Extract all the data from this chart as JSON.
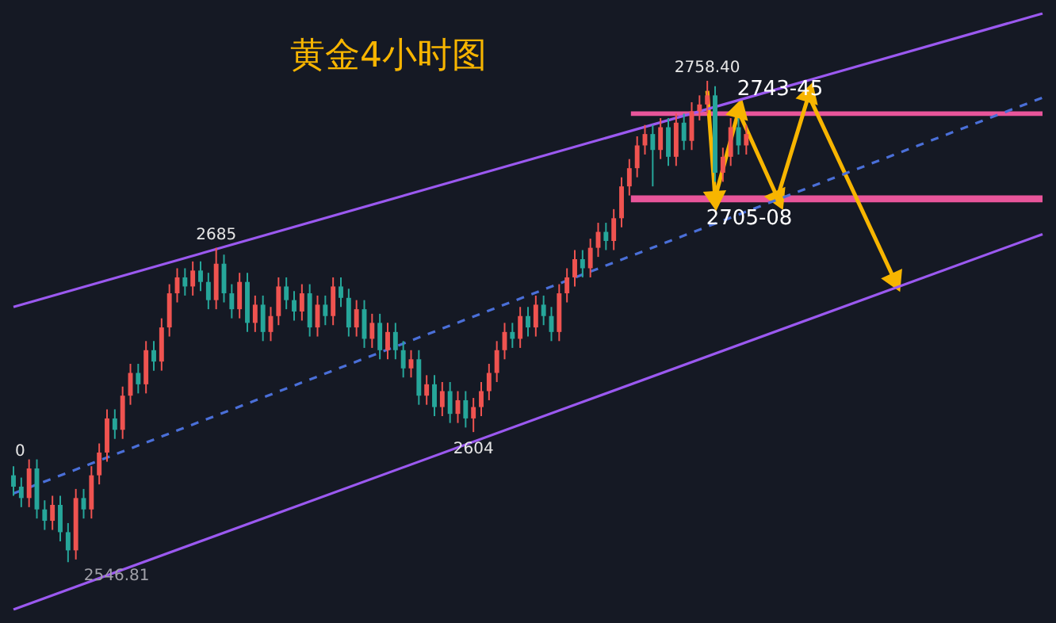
{
  "chart_data": {
    "type": "candlestick",
    "title": "黄金4小时图",
    "categories": [
      null,
      null,
      null,
      null,
      null,
      null,
      null,
      null,
      null,
      null,
      null,
      null,
      null,
      null,
      null,
      null,
      null,
      null,
      null,
      null,
      null,
      null,
      null,
      null,
      null,
      null,
      null,
      null,
      null,
      null,
      null,
      null,
      null,
      null,
      null,
      null,
      null,
      null,
      null,
      null,
      null,
      null,
      null,
      null,
      null,
      null,
      null,
      null,
      null,
      null,
      null,
      null,
      null,
      null,
      null,
      null,
      null,
      null,
      null,
      null,
      null,
      null,
      null,
      null,
      null,
      null,
      null,
      null,
      null,
      null,
      null,
      null,
      null,
      null,
      null,
      null,
      null,
      null,
      null,
      null,
      null,
      null,
      null,
      null,
      null,
      null,
      null,
      null,
      null,
      null,
      null,
      null,
      null,
      null,
      null,
      null,
      null,
      null,
      null,
      null,
      null,
      null,
      null,
      null,
      null,
      null,
      null,
      null,
      null,
      null,
      null,
      null,
      null,
      null,
      null,
      null,
      null,
      null,
      null,
      null,
      null,
      null,
      null,
      null,
      null,
      null,
      null,
      null,
      null,
      null,
      null,
      null,
      null
    ],
    "ohlc": [
      [
        2585,
        2589,
        2576,
        2580
      ],
      [
        2580,
        2584,
        2571,
        2575
      ],
      [
        2575,
        2592,
        2571,
        2588
      ],
      [
        2588,
        2592,
        2566,
        2570
      ],
      [
        2570,
        2574,
        2561,
        2565
      ],
      [
        2565,
        2576,
        2561,
        2572
      ],
      [
        2572,
        2576,
        2556,
        2560
      ],
      [
        2560,
        2564,
        2546.81,
        2552
      ],
      [
        2552,
        2579,
        2548,
        2575
      ],
      [
        2575,
        2579,
        2566,
        2570
      ],
      [
        2570,
        2589,
        2566,
        2585
      ],
      [
        2585,
        2599,
        2581,
        2595
      ],
      [
        2595,
        2614,
        2591,
        2610
      ],
      [
        2610,
        2614,
        2601,
        2605
      ],
      [
        2605,
        2624,
        2601,
        2620
      ],
      [
        2620,
        2634,
        2616,
        2630
      ],
      [
        2630,
        2634,
        2621,
        2625
      ],
      [
        2625,
        2644,
        2621,
        2640
      ],
      [
        2640,
        2644,
        2631,
        2635
      ],
      [
        2635,
        2654,
        2631,
        2650
      ],
      [
        2650,
        2669,
        2646,
        2665
      ],
      [
        2665,
        2676,
        2661,
        2672
      ],
      [
        2672,
        2676,
        2664,
        2668
      ],
      [
        2668,
        2679,
        2664,
        2675
      ],
      [
        2675,
        2679,
        2666,
        2670
      ],
      [
        2670,
        2674,
        2658,
        2662
      ],
      [
        2662,
        2685,
        2658,
        2678
      ],
      [
        2678,
        2682,
        2661,
        2665
      ],
      [
        2665,
        2669,
        2654,
        2658
      ],
      [
        2658,
        2674,
        2654,
        2670
      ],
      [
        2670,
        2674,
        2648,
        2652
      ],
      [
        2652,
        2664,
        2648,
        2660
      ],
      [
        2660,
        2664,
        2644,
        2648
      ],
      [
        2648,
        2659,
        2644,
        2655
      ],
      [
        2655,
        2672,
        2651,
        2668
      ],
      [
        2668,
        2672,
        2658,
        2662
      ],
      [
        2662,
        2666,
        2653,
        2657
      ],
      [
        2657,
        2669,
        2653,
        2665
      ],
      [
        2665,
        2669,
        2646,
        2650
      ],
      [
        2650,
        2664,
        2646,
        2660
      ],
      [
        2660,
        2664,
        2651,
        2655
      ],
      [
        2655,
        2672,
        2651,
        2668
      ],
      [
        2668,
        2672,
        2659,
        2663
      ],
      [
        2663,
        2667,
        2646,
        2650
      ],
      [
        2650,
        2662,
        2646,
        2658
      ],
      [
        2658,
        2662,
        2641,
        2645
      ],
      [
        2645,
        2656,
        2641,
        2652
      ],
      [
        2652,
        2656,
        2636,
        2640
      ],
      [
        2640,
        2652,
        2636,
        2648
      ],
      [
        2648,
        2652,
        2636,
        2640
      ],
      [
        2640,
        2644,
        2628,
        2632
      ],
      [
        2632,
        2640,
        2628,
        2636
      ],
      [
        2636,
        2640,
        2616,
        2620
      ],
      [
        2620,
        2629,
        2616,
        2625
      ],
      [
        2625,
        2629,
        2611,
        2615
      ],
      [
        2615,
        2626,
        2611,
        2622
      ],
      [
        2622,
        2626,
        2608,
        2612
      ],
      [
        2612,
        2622,
        2608,
        2618
      ],
      [
        2618,
        2622,
        2606,
        2610
      ],
      [
        2610,
        2619,
        2604,
        2615
      ],
      [
        2615,
        2626,
        2611,
        2622
      ],
      [
        2622,
        2634,
        2618,
        2630
      ],
      [
        2630,
        2644,
        2626,
        2640
      ],
      [
        2640,
        2652,
        2636,
        2648
      ],
      [
        2648,
        2652,
        2641,
        2645
      ],
      [
        2645,
        2659,
        2641,
        2655
      ],
      [
        2655,
        2659,
        2646,
        2650
      ],
      [
        2650,
        2664,
        2646,
        2660
      ],
      [
        2660,
        2664,
        2651,
        2655
      ],
      [
        2655,
        2659,
        2644,
        2648
      ],
      [
        2648,
        2669,
        2644,
        2665
      ],
      [
        2665,
        2676,
        2661,
        2672
      ],
      [
        2672,
        2684,
        2668,
        2680
      ],
      [
        2680,
        2684,
        2672,
        2676
      ],
      [
        2676,
        2689,
        2672,
        2685
      ],
      [
        2685,
        2696,
        2681,
        2692
      ],
      [
        2692,
        2696,
        2684,
        2688
      ],
      [
        2688,
        2702,
        2684,
        2698
      ],
      [
        2698,
        2716,
        2694,
        2712
      ],
      [
        2712,
        2724,
        2708,
        2720
      ],
      [
        2720,
        2734,
        2716,
        2730
      ],
      [
        2730,
        2739,
        2726,
        2735
      ],
      [
        2735,
        2739,
        2712,
        2728
      ],
      [
        2728,
        2742,
        2724,
        2738
      ],
      [
        2738,
        2742,
        2721,
        2725
      ],
      [
        2725,
        2744,
        2721,
        2740
      ],
      [
        2740,
        2744,
        2728,
        2732
      ],
      [
        2732,
        2749,
        2728,
        2745
      ],
      [
        2745,
        2752,
        2741,
        2748
      ],
      [
        2748,
        2758.4,
        2744,
        2752
      ],
      [
        2752,
        2756,
        2714,
        2718
      ],
      [
        2718,
        2729,
        2714,
        2725
      ],
      [
        2725,
        2742,
        2721,
        2738
      ],
      [
        2738,
        2742,
        2726,
        2730
      ],
      [
        2730,
        2739,
        2726,
        2735
      ],
      null,
      null,
      null,
      null,
      null,
      null,
      null,
      null,
      null,
      null,
      null,
      null,
      null,
      null,
      null,
      null,
      null,
      null,
      null,
      null,
      null,
      null,
      null,
      null,
      null,
      null,
      null,
      null,
      null,
      null,
      null,
      null,
      null,
      null,
      null,
      null,
      null,
      null
    ],
    "colors": [
      "#26a69a",
      "#26a69a",
      "#ef5350",
      "#26a69a",
      "#26a69a",
      "#ef5350",
      "#26a69a",
      "#26a69a",
      "#ef5350",
      "#26a69a",
      "#ef5350",
      "#ef5350",
      "#ef5350",
      "#26a69a",
      "#ef5350",
      "#ef5350",
      "#26a69a",
      "#ef5350",
      "#26a69a",
      "#ef5350",
      "#ef5350",
      "#ef5350",
      "#26a69a",
      "#ef5350",
      "#26a69a",
      "#26a69a",
      "#ef5350",
      "#26a69a",
      "#26a69a",
      "#ef5350",
      "#26a69a",
      "#ef5350",
      "#26a69a",
      "#ef5350",
      "#ef5350",
      "#26a69a",
      "#26a69a",
      "#ef5350",
      "#26a69a",
      "#ef5350",
      "#26a69a",
      "#ef5350",
      "#26a69a",
      "#26a69a",
      "#ef5350",
      "#26a69a",
      "#ef5350",
      "#26a69a",
      "#ef5350",
      "#26a69a",
      "#26a69a",
      "#ef5350",
      "#26a69a",
      "#ef5350",
      "#26a69a",
      "#ef5350",
      "#26a69a",
      "#ef5350",
      "#26a69a",
      "#ef5350",
      "#ef5350",
      "#ef5350",
      "#ef5350",
      "#ef5350",
      "#26a69a",
      "#ef5350",
      "#26a69a",
      "#ef5350",
      "#26a69a",
      "#26a69a",
      "#ef5350",
      "#ef5350",
      "#ef5350",
      "#26a69a",
      "#ef5350",
      "#ef5350",
      "#26a69a",
      "#ef5350",
      "#ef5350",
      "#ef5350",
      "#ef5350",
      "#ef5350",
      "#26a69a",
      "#ef5350",
      "#26a69a",
      "#ef5350",
      "#26a69a",
      "#ef5350",
      "#ef5350",
      "#ef5350",
      "#26a69a",
      "#ef5350",
      "#ef5350",
      "#26a69a",
      "#ef5350",
      null,
      null,
      null,
      null,
      null,
      null,
      null,
      null,
      null,
      null,
      null,
      null,
      null,
      null,
      null,
      null,
      null,
      null,
      null,
      null,
      null,
      null,
      null,
      null,
      null,
      null,
      null,
      null,
      null,
      null,
      null,
      null,
      null,
      null,
      null,
      null,
      null,
      null
    ],
    "series": [
      {
        "type": "line",
        "color": "#9b59f0",
        "values": [
          2659,
          null,
          null,
          null,
          null,
          null,
          null,
          null,
          null,
          null,
          null,
          null,
          null,
          null,
          null,
          null,
          null,
          null,
          null,
          null,
          null,
          null,
          null,
          null,
          null,
          null,
          null,
          null,
          null,
          null,
          null,
          null,
          null,
          null,
          null,
          null,
          null,
          null,
          null,
          null,
          null,
          null,
          null,
          null,
          null,
          null,
          null,
          null,
          null,
          null,
          null,
          null,
          null,
          null,
          null,
          null,
          null,
          null,
          null,
          null,
          null,
          null,
          null,
          null,
          null,
          null,
          null,
          null,
          null,
          null,
          null,
          null,
          null,
          null,
          null,
          null,
          null,
          null,
          null,
          null,
          null,
          null,
          null,
          null,
          null,
          null,
          null,
          null,
          null,
          null,
          null,
          null,
          null,
          null,
          null,
          null,
          null,
          null,
          null,
          null,
          null,
          null,
          null,
          null,
          null,
          null,
          null,
          null,
          null,
          null,
          null,
          null,
          null,
          null,
          null,
          null,
          null,
          null,
          null,
          null,
          null,
          null,
          null,
          null,
          null,
          null,
          null,
          null,
          null,
          null,
          null,
          null,
          2788
        ]
      },
      {
        "type": "line",
        "color": "#9b59f0",
        "values": [
          2526,
          null,
          null,
          null,
          null,
          null,
          null,
          null,
          null,
          null,
          null,
          null,
          null,
          null,
          null,
          null,
          null,
          null,
          null,
          null,
          null,
          null,
          null,
          null,
          null,
          null,
          null,
          null,
          null,
          null,
          null,
          null,
          null,
          null,
          null,
          null,
          null,
          null,
          null,
          null,
          null,
          null,
          null,
          null,
          null,
          null,
          null,
          null,
          null,
          null,
          null,
          null,
          null,
          null,
          null,
          null,
          null,
          null,
          null,
          null,
          null,
          null,
          null,
          null,
          null,
          null,
          null,
          null,
          null,
          null,
          null,
          null,
          null,
          null,
          null,
          null,
          null,
          null,
          null,
          null,
          null,
          null,
          null,
          null,
          null,
          null,
          null,
          null,
          null,
          null,
          null,
          null,
          null,
          null,
          null,
          null,
          null,
          null,
          null,
          null,
          null,
          null,
          null,
          null,
          null,
          null,
          null,
          null,
          null,
          null,
          null,
          null,
          null,
          null,
          null,
          null,
          null,
          null,
          null,
          null,
          null,
          null,
          null,
          null,
          null,
          null,
          null,
          null,
          null,
          null,
          null,
          null,
          2691
        ]
      },
      {
        "type": "line",
        "color": "#4a6fd8",
        "line_style": "dashed",
        "values": [
          2577,
          null,
          null,
          null,
          null,
          null,
          null,
          null,
          null,
          null,
          null,
          null,
          null,
          null,
          null,
          null,
          null,
          null,
          null,
          null,
          null,
          null,
          null,
          null,
          null,
          null,
          null,
          null,
          null,
          null,
          null,
          null,
          null,
          null,
          null,
          null,
          null,
          null,
          null,
          null,
          null,
          null,
          null,
          null,
          null,
          null,
          null,
          null,
          null,
          null,
          null,
          null,
          null,
          null,
          null,
          null,
          null,
          null,
          null,
          null,
          null,
          null,
          null,
          null,
          null,
          null,
          null,
          null,
          null,
          null,
          null,
          null,
          null,
          null,
          null,
          null,
          null,
          null,
          null,
          null,
          null,
          null,
          null,
          null,
          null,
          null,
          null,
          null,
          null,
          null,
          null,
          null,
          null,
          null,
          null,
          null,
          null,
          null,
          null,
          null,
          null,
          null,
          null,
          null,
          null,
          null,
          null,
          null,
          null,
          null,
          null,
          null,
          null,
          null,
          null,
          null,
          null,
          null,
          null,
          null,
          null,
          null,
          null,
          null,
          null,
          null,
          null,
          null,
          null,
          null,
          null,
          null,
          2751
        ]
      },
      {
        "type": "line",
        "color": "#f7b500",
        "marker": "triangle",
        "values": [
          null,
          null,
          null,
          null,
          null,
          null,
          null,
          null,
          null,
          null,
          null,
          null,
          null,
          null,
          null,
          null,
          null,
          null,
          null,
          null,
          null,
          null,
          null,
          null,
          null,
          null,
          null,
          null,
          null,
          null,
          null,
          null,
          null,
          null,
          null,
          null,
          null,
          null,
          null,
          null,
          null,
          null,
          null,
          null,
          null,
          null,
          null,
          null,
          null,
          null,
          null,
          null,
          null,
          null,
          null,
          null,
          null,
          null,
          null,
          null,
          null,
          null,
          null,
          null,
          null,
          null,
          null,
          null,
          null,
          null,
          null,
          null,
          null,
          null,
          null,
          null,
          null,
          null,
          null,
          null,
          null,
          null,
          null,
          null,
          null,
          null,
          null,
          null,
          null,
          2754,
          2707,
          null,
          null,
          2745,
          null,
          null,
          null,
          null,
          2707,
          null,
          null,
          null,
          2752,
          null,
          null,
          null,
          null,
          null,
          null,
          null,
          null,
          null,
          null,
          2671,
          null,
          null,
          null,
          null,
          null,
          null,
          null,
          null,
          null,
          null,
          null,
          null,
          null,
          null,
          null,
          null,
          null,
          null,
          null
        ]
      }
    ],
    "bands": [
      {
        "axis": "y",
        "from": 2743,
        "to": 2745,
        "label": "2743-45",
        "color": "#e8559a"
      },
      {
        "axis": "y",
        "from": 2705,
        "to": 2708,
        "label": "2705-08",
        "color": "#e8559a"
      }
    ],
    "annotations": [
      "2758.40",
      "2685",
      "2604",
      "2546.81",
      "0"
    ],
    "tick_labels": false,
    "grid": false,
    "legend": false
  }
}
